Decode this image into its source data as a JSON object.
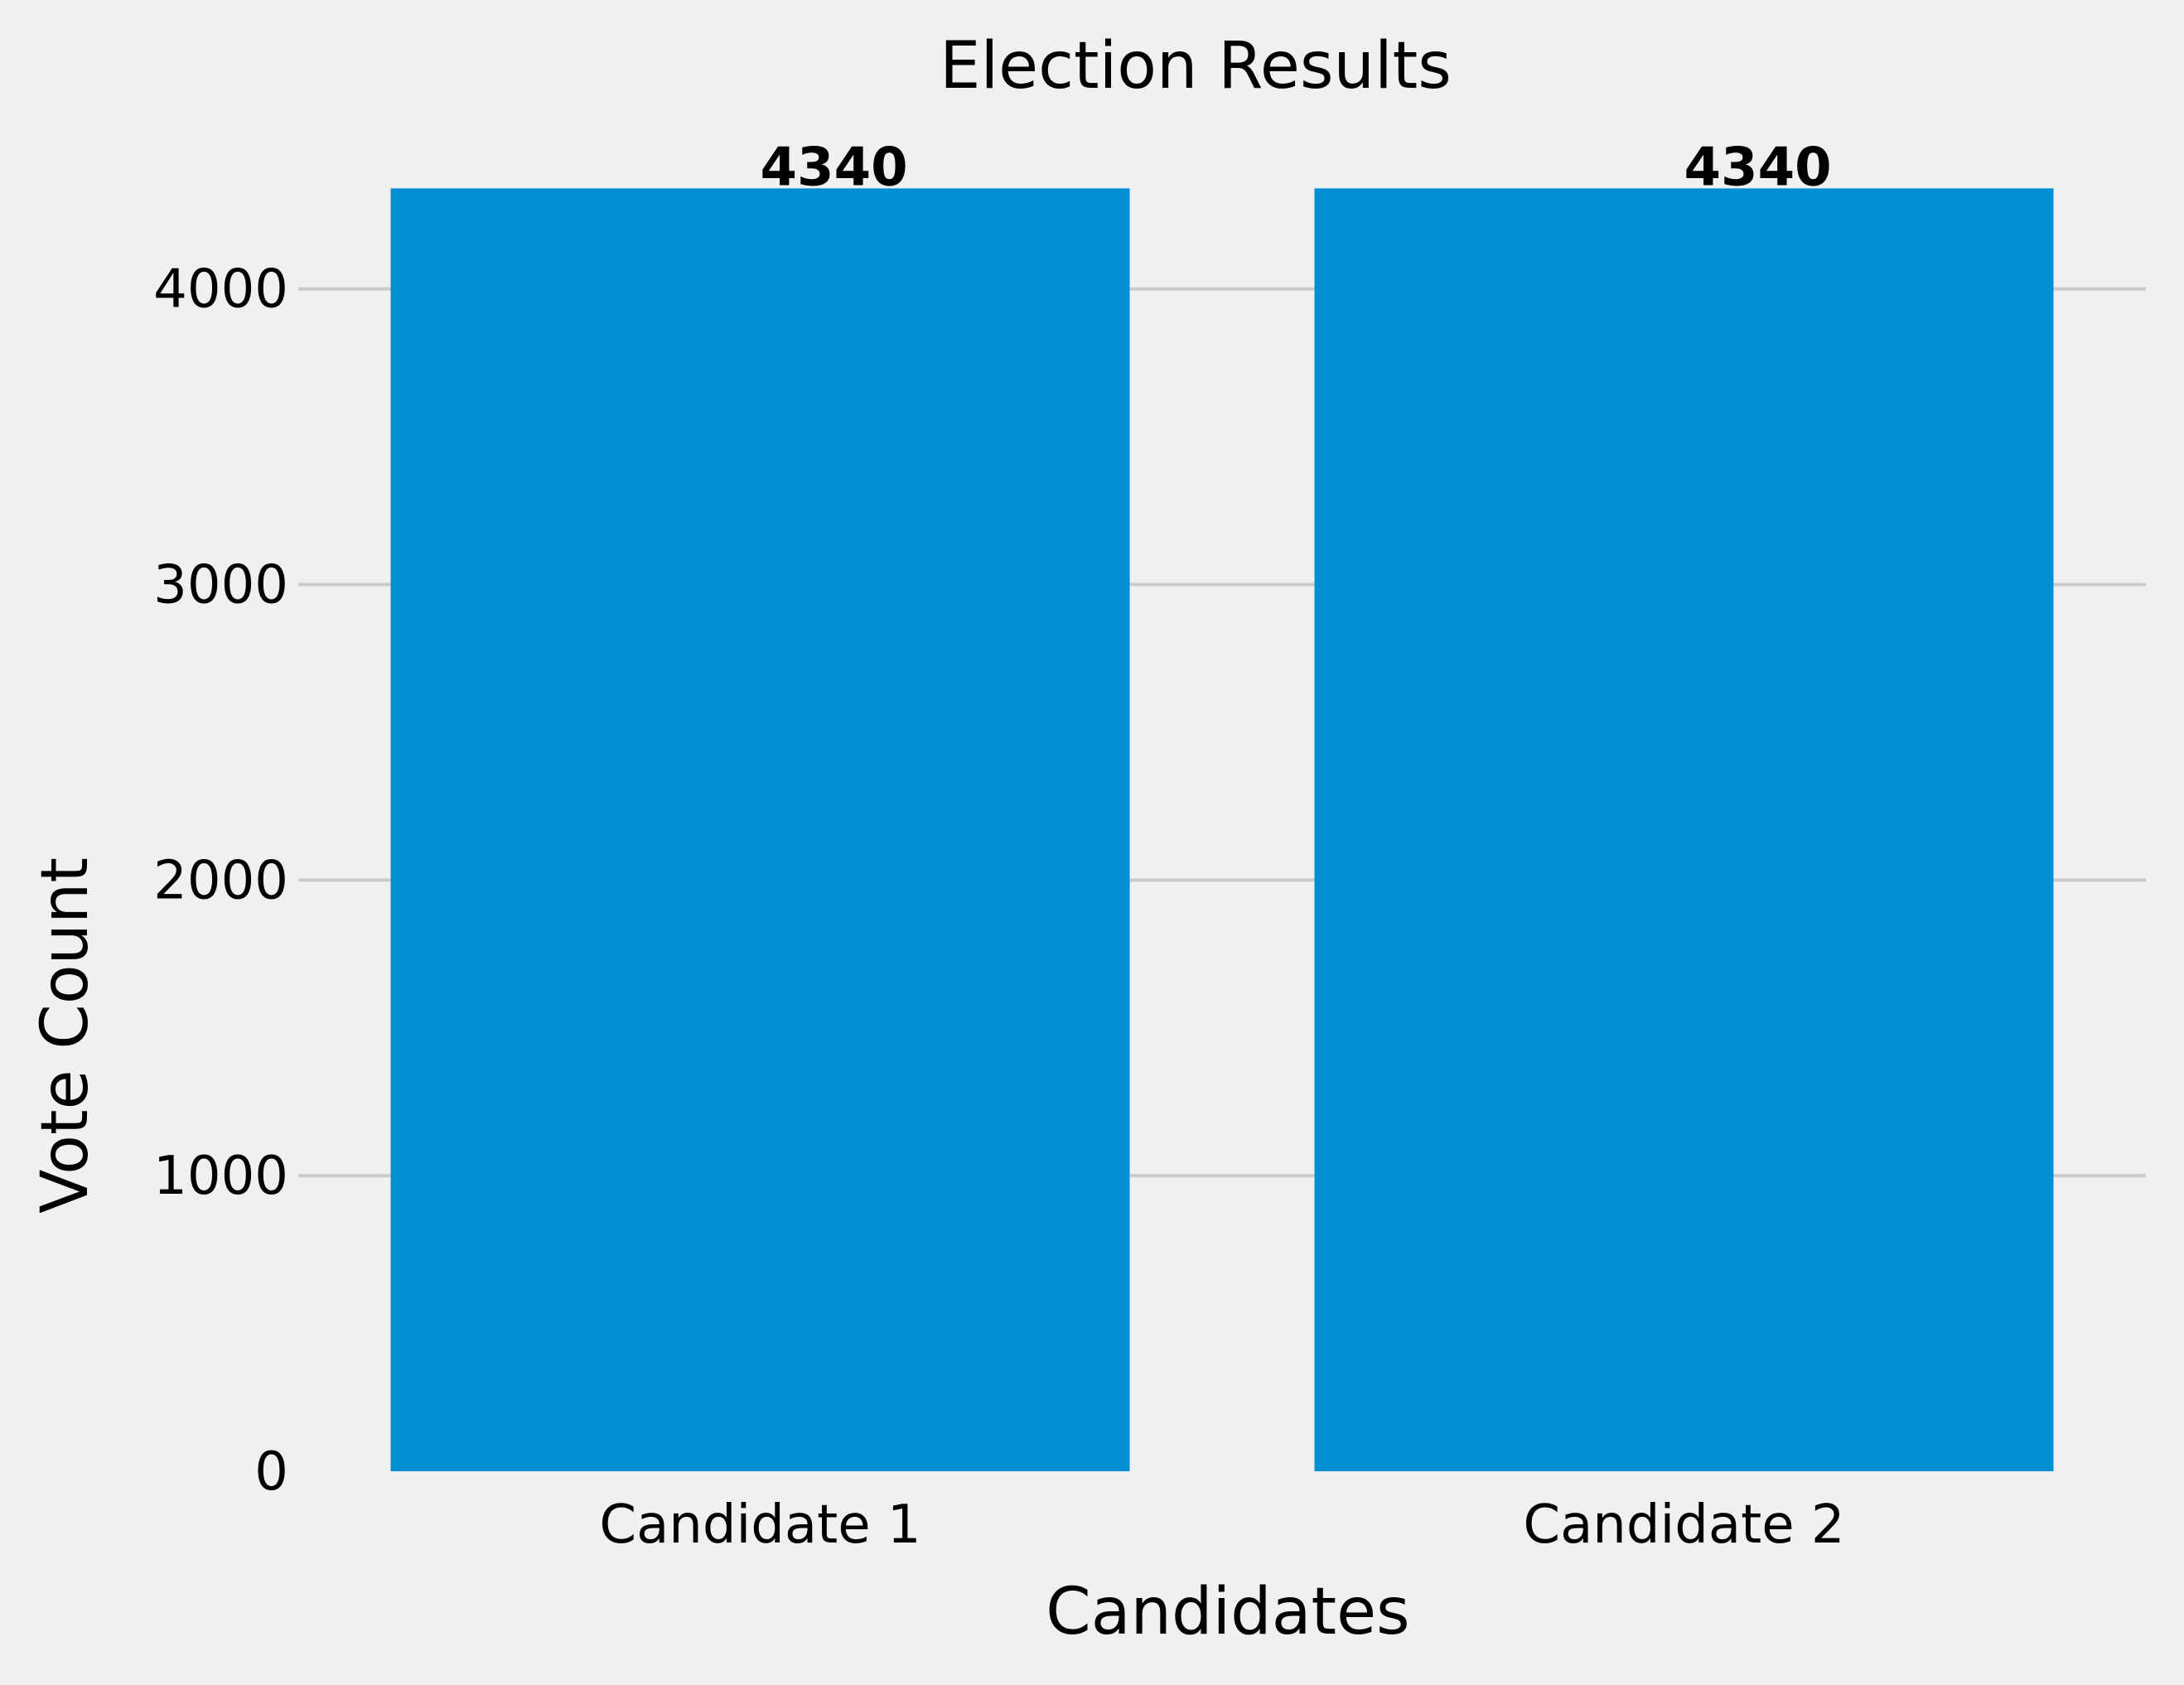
{
  "chart_data": {
    "type": "bar",
    "title": "Election Results",
    "xlabel": "Candidates",
    "ylabel": "Vote Count",
    "categories": [
      "Candidate 1",
      "Candidate 2"
    ],
    "values": [
      4340,
      4340
    ],
    "data_labels": [
      "4340",
      "4340"
    ],
    "yticks": [
      0,
      1000,
      2000,
      3000,
      4000
    ],
    "ytick_labels": [
      "0",
      "1000",
      "2000",
      "3000",
      "4000"
    ],
    "ylim": [
      0,
      4557
    ],
    "grid": true,
    "bar_color": "#008fd5",
    "background_color": "#f0f0f0",
    "grid_color": "#cbcbcb"
  }
}
